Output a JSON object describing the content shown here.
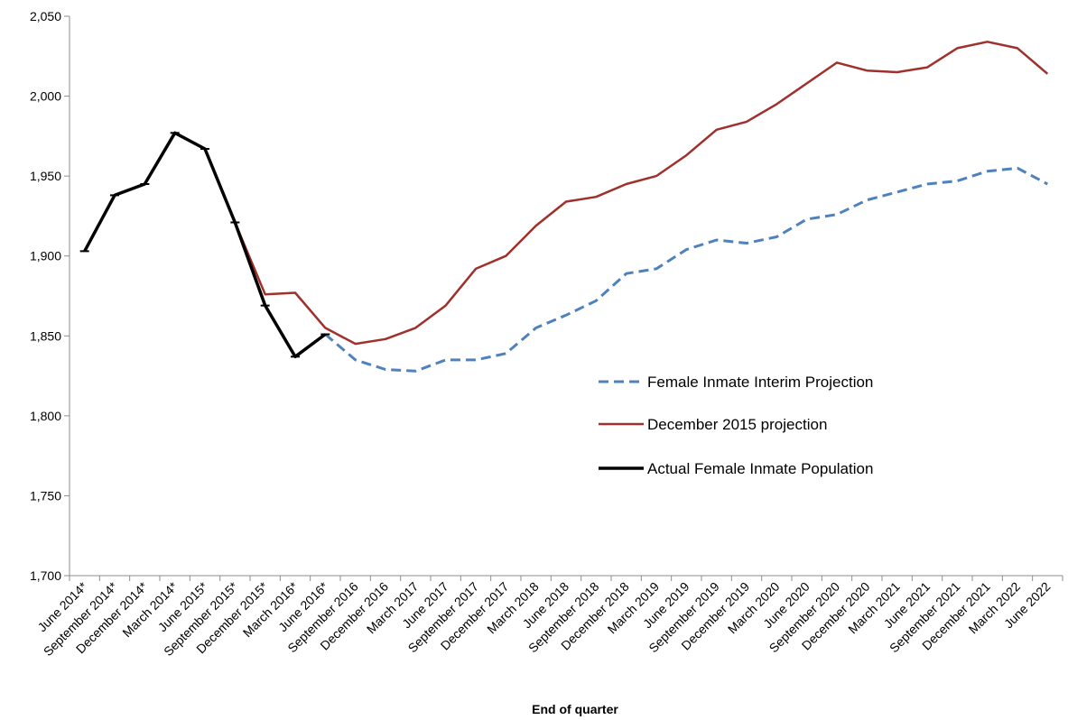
{
  "chart_data": {
    "type": "line",
    "title": "",
    "xlabel": "End of quarter",
    "ylabel": "",
    "ylim": [
      1700,
      2050
    ],
    "yticks": [
      1700,
      1750,
      1800,
      1850,
      1900,
      1950,
      2000,
      2050
    ],
    "ytick_labels": [
      "1,700",
      "1,750",
      "1,800",
      "1,850",
      "1,900",
      "1,950",
      "2,000",
      "2,050"
    ],
    "grid": false,
    "legend_position": "right",
    "categories": [
      "June 2014*",
      "September 2014*",
      "December 2014*",
      "March 2014*",
      "June 2015*",
      "September 2015*",
      "December 2015*",
      "March 2016*",
      "June 2016*",
      "September 2016",
      "December 2016",
      "March 2017",
      "June 2017",
      "September 2017",
      "December 2017",
      "March 2018",
      "June 2018",
      "September 2018",
      "December 2018",
      "March 2019",
      "June 2019",
      "September 2019",
      "December 2019",
      "March 2020",
      "June 2020",
      "September 2020",
      "December 2020",
      "March 2021",
      "June 2021",
      "September 2021",
      "December 2021",
      "March 2022",
      "June 2022"
    ],
    "series": [
      {
        "name": "Female Inmate Interim Projection",
        "color": "#4f81bd",
        "style": "dashed",
        "values": [
          null,
          null,
          null,
          null,
          null,
          null,
          null,
          null,
          1851,
          1835,
          1829,
          1828,
          1835,
          1835,
          1839,
          1855,
          1863,
          1872,
          1889,
          1892,
          1904,
          1910,
          1908,
          1912,
          1923,
          1926,
          1935,
          1940,
          1945,
          1947,
          1953,
          1955,
          1945
        ]
      },
      {
        "name": "December 2015 projection",
        "color": "#a0302c",
        "style": "solid",
        "values": [
          null,
          null,
          null,
          null,
          null,
          1921,
          1876,
          1877,
          1855,
          1845,
          1848,
          1855,
          1869,
          1892,
          1900,
          1919,
          1934,
          1937,
          1945,
          1950,
          1963,
          1979,
          1984,
          1995,
          2008,
          2021,
          2016,
          2015,
          2018,
          2030,
          2034,
          2030,
          2014
        ]
      },
      {
        "name": "Actual Female Inmate Population",
        "color": "#000000",
        "style": "solid-bold",
        "values": [
          1903,
          1938,
          1945,
          1977,
          1967,
          1921,
          1869,
          1837,
          1851,
          null,
          null,
          null,
          null,
          null,
          null,
          null,
          null,
          null,
          null,
          null,
          null,
          null,
          null,
          null,
          null,
          null,
          null,
          null,
          null,
          null,
          null,
          null,
          null
        ]
      }
    ]
  }
}
